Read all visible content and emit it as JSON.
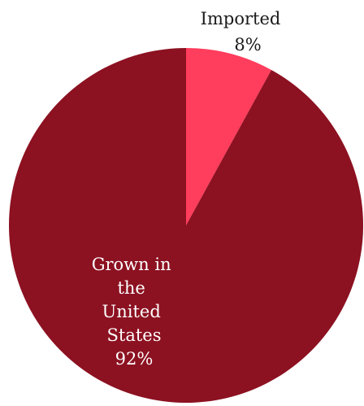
{
  "chart_data": {
    "type": "pie",
    "slices": [
      {
        "label": "Imported",
        "value": 8,
        "value_label": "8%",
        "color": "#FF3D5C"
      },
      {
        "label": "Grown in the United States",
        "value": 92,
        "value_label": "92%",
        "color": "#8C1121"
      }
    ],
    "start_angle_deg": 0,
    "direction": "clockwise"
  }
}
